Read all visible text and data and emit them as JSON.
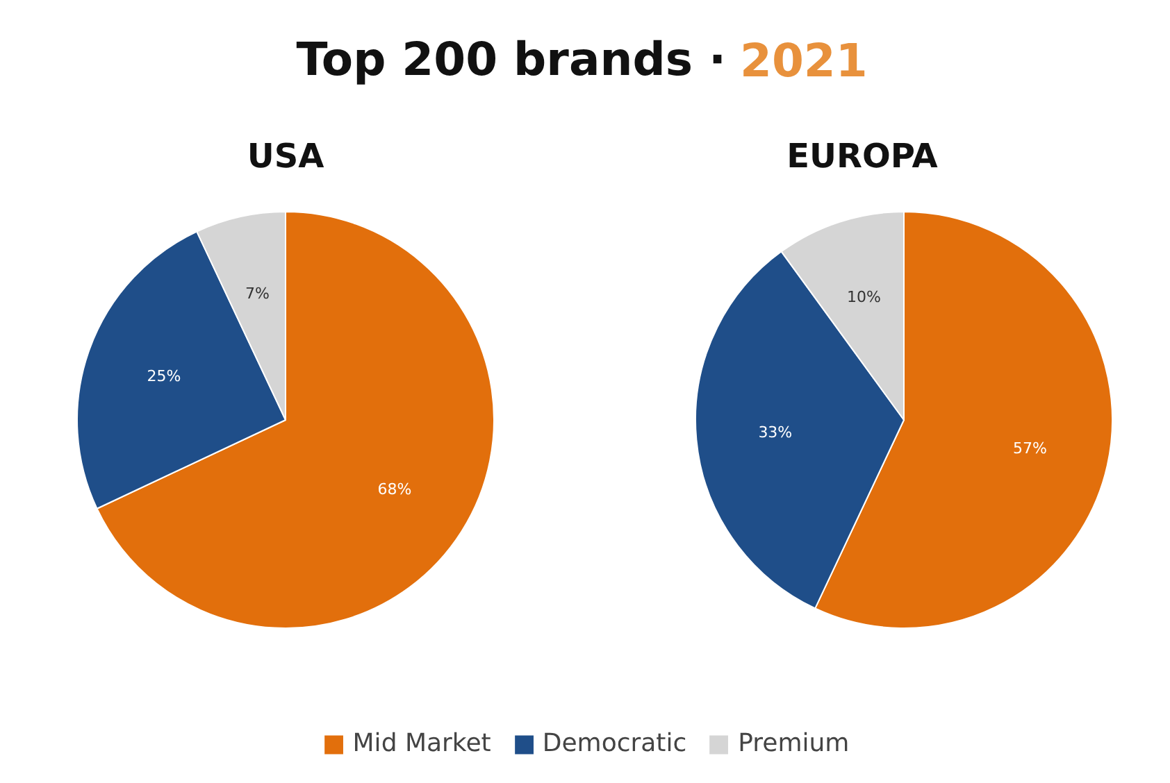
{
  "chart_data": [
    {
      "type": "pie",
      "title": "Top 200 brands · 2021",
      "subtitle": "USA",
      "categories": [
        "Mid Market",
        "Democratic",
        "Premium"
      ],
      "values": [
        68,
        25,
        7
      ],
      "value_labels": [
        "68%",
        "25%",
        "7%"
      ],
      "colors": [
        "#e26f0c",
        "#1f4e89",
        "#d5d5d5"
      ],
      "legend": "bottom"
    },
    {
      "type": "pie",
      "subtitle": "EUROPA",
      "categories": [
        null,
        null,
        null
      ],
      "values": [
        57,
        33,
        10
      ],
      "value_labels": [
        "57%",
        "33%",
        "10%"
      ],
      "colors": [
        "#e26f0c",
        "#1f4e89",
        "#d5d5d5"
      ]
    }
  ]
}
